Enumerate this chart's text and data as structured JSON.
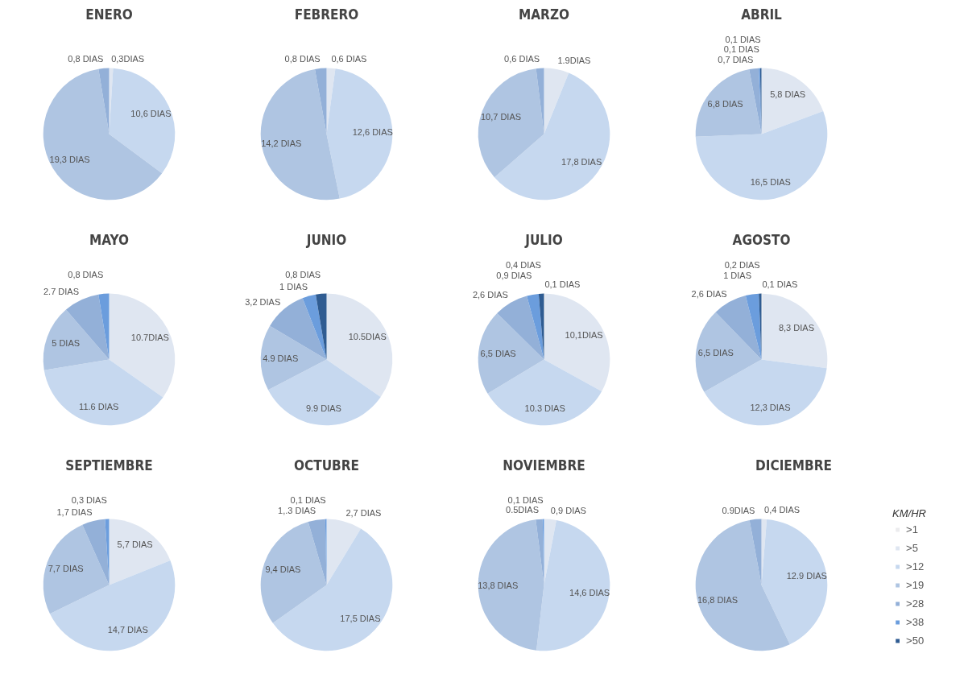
{
  "chart_data": [
    {
      "type": "pie",
      "title": "ENERO",
      "categories": [
        null,
        null,
        null,
        null,
        null,
        null,
        null
      ],
      "colors": [
        "#ececee",
        "#dfe6f1",
        "#c6d8ef",
        "#afc5e2",
        "#93b0d8",
        "#6b9ddd",
        "#2f5c92"
      ],
      "values": [
        null,
        0.3,
        10.6,
        19.3,
        0.8,
        null,
        null
      ],
      "value_labels": [
        null,
        "0,3DIAS",
        "10,6 DIAS",
        "19,3 DIAS",
        "0,8 DIAS",
        null,
        null
      ]
    },
    {
      "type": "pie",
      "title": "FEBRERO",
      "categories": [
        null,
        null,
        null,
        null,
        null,
        null,
        null
      ],
      "colors": [
        "#ececee",
        "#dfe6f1",
        "#c6d8ef",
        "#afc5e2",
        "#93b0d8",
        "#6b9ddd",
        "#2f5c92"
      ],
      "values": [
        null,
        0.6,
        12.6,
        14.2,
        0.8,
        null,
        null
      ],
      "value_labels": [
        null,
        "0,6 DIAS",
        "12,6 DIAS",
        "14,2 DIAS",
        "0,8 DIAS",
        null,
        null
      ]
    },
    {
      "type": "pie",
      "title": "MARZO",
      "categories": [
        null,
        null,
        null,
        null,
        null,
        null,
        null
      ],
      "colors": [
        "#ececee",
        "#dfe6f1",
        "#c6d8ef",
        "#afc5e2",
        "#93b0d8",
        "#6b9ddd",
        "#2f5c92"
      ],
      "values": [
        null,
        1.9,
        17.8,
        10.7,
        0.6,
        null,
        null
      ],
      "value_labels": [
        null,
        "1.9DIAS",
        "17,8 DIAS",
        "10,7 DIAS",
        "0,6 DIAS",
        null,
        null
      ]
    },
    {
      "type": "pie",
      "title": "ABRIL",
      "categories": [
        null,
        null,
        null,
        null,
        null,
        null,
        null
      ],
      "colors": [
        "#ececee",
        "#dfe6f1",
        "#c6d8ef",
        "#afc5e2",
        "#93b0d8",
        "#6b9ddd",
        "#2f5c92"
      ],
      "values": [
        null,
        5.8,
        16.5,
        6.8,
        0.7,
        0.1,
        0.1
      ],
      "value_labels": [
        null,
        "5,8 DIAS",
        "16,5 DIAS",
        "6,8 DIAS",
        "0,7 DIAS",
        "0,1 DIAS",
        "0,1 DIAS"
      ]
    },
    {
      "type": "pie",
      "title": "MAYO",
      "categories": [
        null,
        null,
        null,
        null,
        null,
        null,
        null
      ],
      "colors": [
        "#ececee",
        "#dfe6f1",
        "#c6d8ef",
        "#afc5e2",
        "#93b0d8",
        "#6b9ddd",
        "#2f5c92"
      ],
      "values": [
        null,
        10.7,
        11.6,
        5,
        2.7,
        0.8,
        null
      ],
      "value_labels": [
        null,
        "10.7DIAS",
        "11.6 DIAS",
        "5 DIAS",
        "2.7 DIAS",
        "0,8 DIAS",
        null
      ]
    },
    {
      "type": "pie",
      "title": "JUNIO",
      "categories": [
        null,
        null,
        null,
        null,
        null,
        null,
        null
      ],
      "colors": [
        "#ececee",
        "#dfe6f1",
        "#c6d8ef",
        "#afc5e2",
        "#93b0d8",
        "#6b9ddd",
        "#2f5c92"
      ],
      "values": [
        null,
        10.5,
        9.9,
        4.9,
        3.2,
        1,
        0.8
      ],
      "value_labels": [
        null,
        "10.5DIAS",
        "9.9 DIAS",
        "4.9 DIAS",
        "3,2 DIAS",
        "1 DIAS",
        "0,8 DIAS"
      ]
    },
    {
      "type": "pie",
      "title": "JULIO",
      "categories": [
        null,
        null,
        null,
        null,
        null,
        null,
        null
      ],
      "colors": [
        "#ececee",
        "#dfe6f1",
        "#c6d8ef",
        "#afc5e2",
        "#93b0d8",
        "#6b9ddd",
        "#2f5c92"
      ],
      "values": [
        0.1,
        10.1,
        10.3,
        6.5,
        2.6,
        0.9,
        0.4
      ],
      "value_labels": [
        "0,1 DIAS",
        "10,1DIAS",
        "10.3 DIAS",
        "6,5 DIAS",
        "2,6 DIAS",
        "0,9 DIAS",
        "0,4 DIAS"
      ]
    },
    {
      "type": "pie",
      "title": "AGOSTO",
      "categories": [
        null,
        null,
        null,
        null,
        null,
        null,
        null
      ],
      "colors": [
        "#ececee",
        "#dfe6f1",
        "#c6d8ef",
        "#afc5e2",
        "#93b0d8",
        "#6b9ddd",
        "#2f5c92"
      ],
      "values": [
        0.1,
        8.3,
        12.3,
        6.5,
        2.6,
        1,
        0.2
      ],
      "value_labels": [
        "0,1 DIAS",
        "8,3 DIAS",
        "12,3 DIAS",
        "6,5 DIAS",
        "2,6 DIAS",
        "1 DIAS",
        "0,2 DIAS"
      ]
    },
    {
      "type": "pie",
      "title": "SEPTIEMBRE",
      "categories": [
        null,
        null,
        null,
        null,
        null,
        null,
        null
      ],
      "colors": [
        "#ececee",
        "#dfe6f1",
        "#c6d8ef",
        "#afc5e2",
        "#93b0d8",
        "#6b9ddd",
        "#2f5c92"
      ],
      "values": [
        null,
        5.7,
        14.7,
        7.7,
        1.7,
        0.3,
        null
      ],
      "value_labels": [
        null,
        "5,7 DIAS",
        "14,7 DIAS",
        "7,7 DIAS",
        "1,7 DIAS",
        "0,3 DIAS",
        null
      ]
    },
    {
      "type": "pie",
      "title": "OCTUBRE",
      "categories": [
        null,
        null,
        null,
        null,
        null,
        null,
        null
      ],
      "colors": [
        "#ececee",
        "#dfe6f1",
        "#c6d8ef",
        "#afc5e2",
        "#93b0d8",
        "#6b9ddd",
        "#2f5c92"
      ],
      "values": [
        null,
        2.7,
        17.5,
        9.4,
        1.3,
        0.1,
        null
      ],
      "value_labels": [
        null,
        "2,7 DIAS",
        "17,5 DIAS",
        "9,4 DIAS",
        "1,.3 DIAS",
        "0,1 DIAS",
        null
      ]
    },
    {
      "type": "pie",
      "title": "NOVIEMBRE",
      "categories": [
        null,
        null,
        null,
        null,
        null,
        null,
        null
      ],
      "colors": [
        "#ececee",
        "#dfe6f1",
        "#c6d8ef",
        "#afc5e2",
        "#93b0d8",
        "#6b9ddd",
        "#2f5c92"
      ],
      "values": [
        null,
        0.9,
        14.6,
        13.8,
        0.5,
        0.1,
        null
      ],
      "value_labels": [
        null,
        "0,9 DIAS",
        "14,6 DIAS",
        "13,8 DIAS",
        "0.5DIAS",
        "0,1 DIAS",
        null
      ]
    },
    {
      "type": "pie",
      "title": "DICIEMBRE",
      "categories": [
        ">1",
        ">5",
        ">12",
        ">19",
        ">28",
        ">38",
        ">50"
      ],
      "colors": [
        "#ececee",
        "#dfe6f1",
        "#c6d8ef",
        "#afc5e2",
        "#93b0d8",
        "#6b9ddd",
        "#2f5c92"
      ],
      "values": [
        null,
        0.4,
        12.9,
        16.8,
        0.9,
        null,
        null
      ],
      "value_labels": [
        null,
        "0,4 DIAS",
        "12.9 DIAS",
        "16,8 DIAS",
        "0.9DIAS",
        null,
        null
      ],
      "legend": "right",
      "legend_title": "KM/HR"
    }
  ]
}
